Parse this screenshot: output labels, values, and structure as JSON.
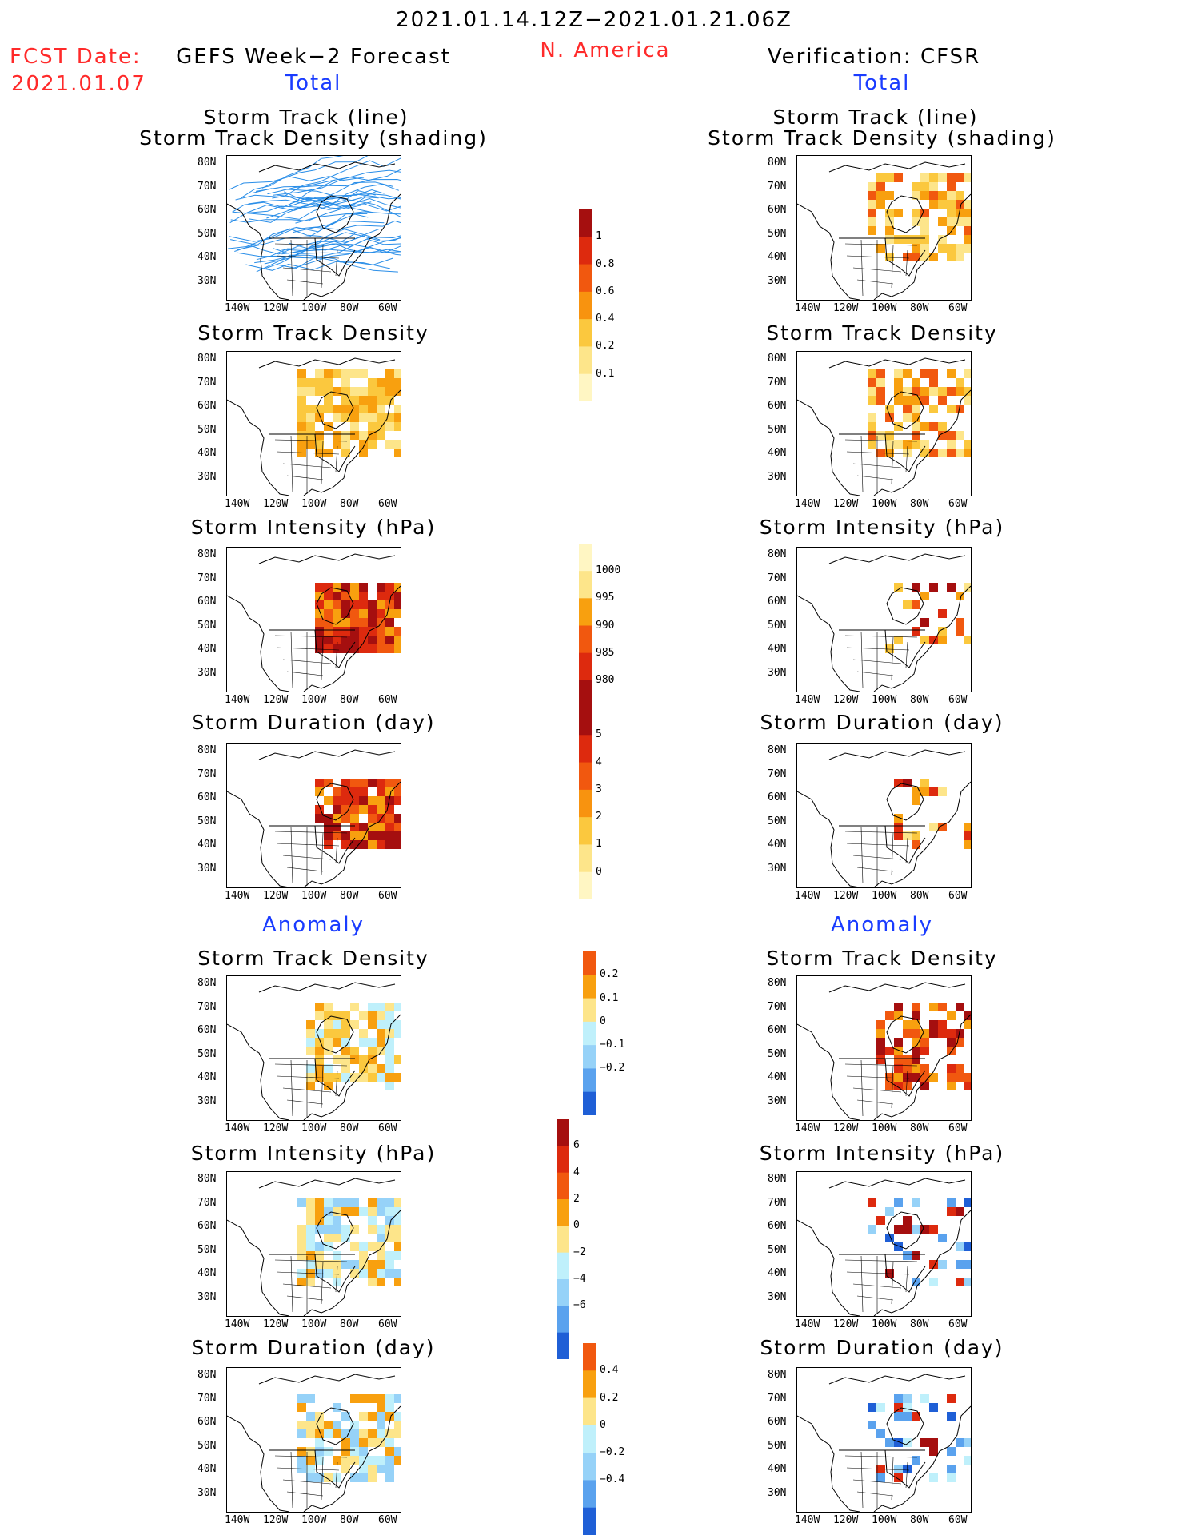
{
  "header": {
    "period": "2021.01.14.12Z−2021.01.21.06Z",
    "region": "N. America",
    "fcst_label": "FCST Date:",
    "fcst_date": "2021.01.07",
    "left_title": "GEFS Week−2 Forecast",
    "right_title": "Verification: CFSR",
    "total_label": "Total",
    "anomaly_label": "Anomaly"
  },
  "panel_titles": {
    "track_line": "Storm Track (line)",
    "track_density_shading": "Storm Track Density (shading)",
    "track_density": "Storm Track Density",
    "intensity": "Storm Intensity (hPa)",
    "duration": "Storm Duration (day)"
  },
  "axes": {
    "lat_ticks": [
      "80N",
      "70N",
      "60N",
      "50N",
      "40N",
      "30N"
    ],
    "lon_ticks": [
      "140W",
      "120W",
      "100W",
      "80W",
      "60W"
    ]
  },
  "colorbars": {
    "density_total": {
      "labels": [
        "1",
        "0.8",
        "0.6",
        "0.4",
        "0.2",
        "0.1"
      ],
      "colors": [
        "#a50f0f",
        "#dd2a0e",
        "#f1580f",
        "#f8930f",
        "#fbc83e",
        "#fde58a",
        "#fff6c3"
      ]
    },
    "intensity_total": {
      "labels": [
        "1000",
        "995",
        "990",
        "985",
        "980"
      ],
      "colors": [
        "#fff6c3",
        "#fde58a",
        "#f8a00f",
        "#f1580f",
        "#dd2a0e",
        "#a50f0f"
      ]
    },
    "duration_total": {
      "labels": [
        "5",
        "4",
        "3",
        "2",
        "1",
        "0"
      ],
      "colors": [
        "#a50f0f",
        "#dd2a0e",
        "#f1580f",
        "#f8930f",
        "#fbc83e",
        "#fde58a",
        "#fff6c3"
      ]
    },
    "density_anom": {
      "labels": [
        "0.2",
        "0.1",
        "0",
        "−0.1",
        "−0.2"
      ],
      "colors": [
        "#f1580f",
        "#f8a00f",
        "#fde58a",
        "#bff0fb",
        "#96d2f8",
        "#5aa2ee",
        "#1f5fd6"
      ]
    },
    "intensity_anom": {
      "labels": [
        "6",
        "4",
        "2",
        "0",
        "−2",
        "−4",
        "−6"
      ],
      "colors": [
        "#a50f0f",
        "#dd2a0e",
        "#f1580f",
        "#f8a00f",
        "#fde58a",
        "#bff0fb",
        "#96d2f8",
        "#5aa2ee",
        "#1f5fd6"
      ]
    },
    "duration_anom": {
      "labels": [
        "0.4",
        "0.2",
        "0",
        "−0.2",
        "−0.4"
      ],
      "colors": [
        "#f1580f",
        "#f8a00f",
        "#fde58a",
        "#bff0fb",
        "#96d2f8",
        "#5aa2ee",
        "#1f5fd6"
      ]
    }
  },
  "legend_colors": {
    "track_line": "#2a8ee8",
    "map_outline": "#000000"
  }
}
